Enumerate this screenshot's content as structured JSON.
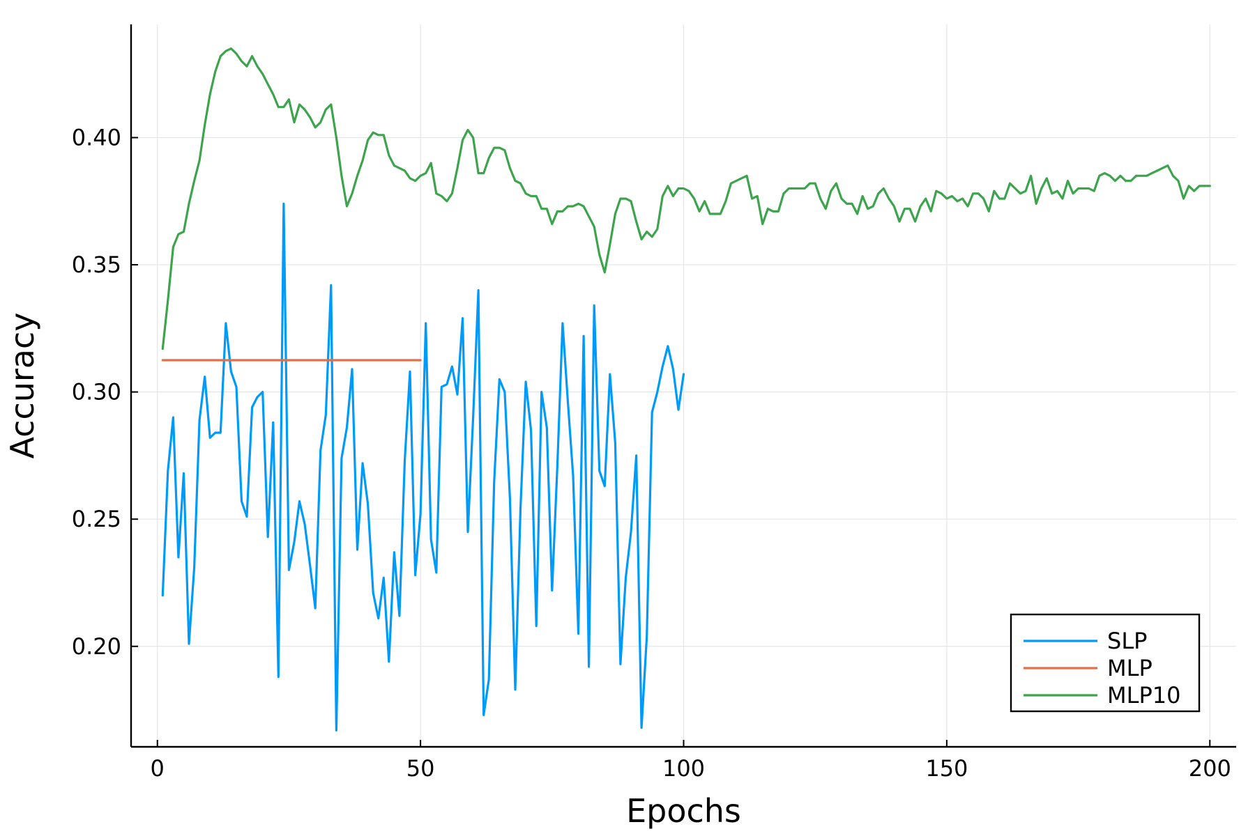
{
  "chart_data": {
    "type": "line",
    "title": "",
    "xlabel": "Epochs",
    "ylabel": "Accuracy",
    "xlim": [
      -5,
      205
    ],
    "ylim": [
      0.1605,
      0.4445
    ],
    "xticks": [
      0,
      50,
      100,
      150,
      200
    ],
    "yticks": [
      0.2,
      0.25,
      0.3,
      0.35,
      0.4
    ],
    "xtick_labels": [
      "0",
      "50",
      "100",
      "150",
      "200"
    ],
    "ytick_labels": [
      "0.20",
      "0.25",
      "0.30",
      "0.35",
      "0.40"
    ],
    "grid": true,
    "legend_position": "bottom-right",
    "series": [
      {
        "name": "SLP",
        "color": "#009af9",
        "x_start": 1,
        "values": [
          0.22,
          0.269,
          0.29,
          0.235,
          0.268,
          0.201,
          0.231,
          0.289,
          0.306,
          0.282,
          0.284,
          0.284,
          0.327,
          0.308,
          0.302,
          0.257,
          0.251,
          0.294,
          0.298,
          0.3,
          0.243,
          0.288,
          0.188,
          0.374,
          0.23,
          0.241,
          0.257,
          0.248,
          0.232,
          0.215,
          0.277,
          0.291,
          0.342,
          0.167,
          0.274,
          0.286,
          0.309,
          0.238,
          0.272,
          0.256,
          0.221,
          0.211,
          0.227,
          0.194,
          0.237,
          0.212,
          0.273,
          0.308,
          0.228,
          0.252,
          0.327,
          0.242,
          0.229,
          0.302,
          0.303,
          0.31,
          0.299,
          0.329,
          0.245,
          0.29,
          0.34,
          0.173,
          0.187,
          0.265,
          0.305,
          0.3,
          0.258,
          0.183,
          0.254,
          0.304,
          0.285,
          0.208,
          0.3,
          0.286,
          0.222,
          0.271,
          0.327,
          0.296,
          0.267,
          0.205,
          0.322,
          0.192,
          0.334,
          0.269,
          0.263,
          0.307,
          0.28,
          0.193,
          0.227,
          0.245,
          0.275,
          0.168,
          0.204,
          0.292,
          0.3,
          0.31,
          0.318,
          0.309,
          0.293,
          0.307
        ]
      },
      {
        "name": "MLP",
        "color": "#e26f46",
        "x_start": 1,
        "values": [
          0.3125,
          0.3125,
          0.3125,
          0.3125,
          0.3125,
          0.3125,
          0.3125,
          0.3125,
          0.3125,
          0.3125,
          0.3125,
          0.3125,
          0.3125,
          0.3125,
          0.3125,
          0.3125,
          0.3125,
          0.3125,
          0.3125,
          0.3125,
          0.3125,
          0.3125,
          0.3125,
          0.3125,
          0.3125,
          0.3125,
          0.3125,
          0.3125,
          0.3125,
          0.3125,
          0.3125,
          0.3125,
          0.3125,
          0.3125,
          0.3125,
          0.3125,
          0.3125,
          0.3125,
          0.3125,
          0.3125,
          0.3125,
          0.3125,
          0.3125,
          0.3125,
          0.3125,
          0.3125,
          0.3125,
          0.3125,
          0.3125,
          0.3125
        ]
      },
      {
        "name": "MLP10",
        "color": "#3da44d",
        "x_start": 1,
        "values": [
          0.317,
          0.336,
          0.357,
          0.362,
          0.363,
          0.374,
          0.383,
          0.391,
          0.405,
          0.417,
          0.426,
          0.432,
          0.434,
          0.435,
          0.433,
          0.43,
          0.428,
          0.432,
          0.428,
          0.425,
          0.421,
          0.417,
          0.412,
          0.412,
          0.415,
          0.406,
          0.413,
          0.411,
          0.408,
          0.404,
          0.406,
          0.411,
          0.413,
          0.4,
          0.385,
          0.373,
          0.378,
          0.385,
          0.391,
          0.399,
          0.402,
          0.401,
          0.401,
          0.393,
          0.389,
          0.388,
          0.387,
          0.384,
          0.383,
          0.385,
          0.386,
          0.39,
          0.378,
          0.377,
          0.375,
          0.378,
          0.388,
          0.399,
          0.403,
          0.4,
          0.386,
          0.386,
          0.392,
          0.396,
          0.396,
          0.395,
          0.388,
          0.383,
          0.382,
          0.378,
          0.377,
          0.377,
          0.372,
          0.372,
          0.366,
          0.371,
          0.371,
          0.373,
          0.373,
          0.374,
          0.373,
          0.369,
          0.365,
          0.354,
          0.347,
          0.358,
          0.37,
          0.376,
          0.376,
          0.375,
          0.367,
          0.36,
          0.363,
          0.361,
          0.364,
          0.377,
          0.381,
          0.377,
          0.38,
          0.38,
          0.379,
          0.376,
          0.371,
          0.375,
          0.37,
          0.37,
          0.37,
          0.375,
          0.382,
          0.383,
          0.384,
          0.385,
          0.376,
          0.377,
          0.366,
          0.372,
          0.371,
          0.371,
          0.378,
          0.38,
          0.38,
          0.38,
          0.38,
          0.382,
          0.382,
          0.376,
          0.372,
          0.379,
          0.382,
          0.376,
          0.374,
          0.374,
          0.37,
          0.377,
          0.372,
          0.373,
          0.378,
          0.38,
          0.376,
          0.373,
          0.367,
          0.372,
          0.372,
          0.367,
          0.373,
          0.376,
          0.371,
          0.379,
          0.378,
          0.376,
          0.377,
          0.375,
          0.376,
          0.373,
          0.378,
          0.378,
          0.376,
          0.371,
          0.379,
          0.376,
          0.376,
          0.382,
          0.38,
          0.378,
          0.379,
          0.385,
          0.374,
          0.38,
          0.384,
          0.378,
          0.379,
          0.376,
          0.383,
          0.378,
          0.38,
          0.38,
          0.38,
          0.379,
          0.385,
          0.386,
          0.385,
          0.383,
          0.385,
          0.383,
          0.383,
          0.385,
          0.385,
          0.385,
          0.386,
          0.387,
          0.388,
          0.389,
          0.385,
          0.383,
          0.376,
          0.381,
          0.379,
          0.381,
          0.381,
          0.381
        ]
      }
    ]
  }
}
